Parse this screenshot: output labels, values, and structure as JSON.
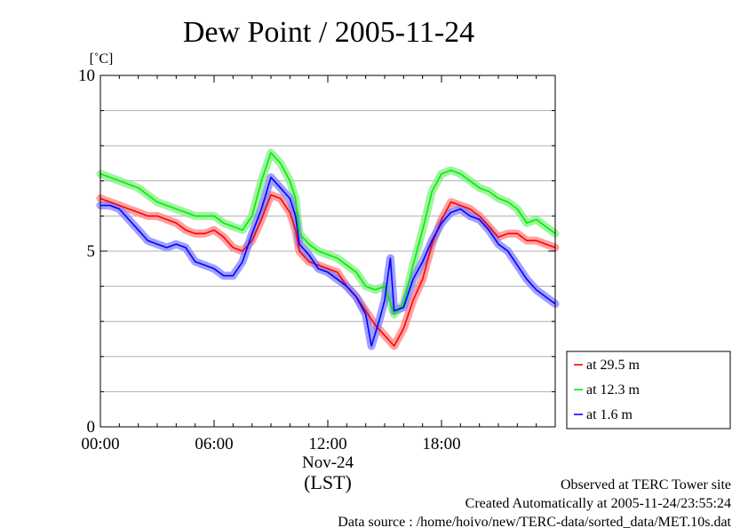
{
  "chart_data": {
    "type": "line",
    "title": "Dew Point / 2005-11-24",
    "ylabel": "[˚C]",
    "ylim": [
      0,
      10
    ],
    "yticks": [
      "0",
      "5",
      "10"
    ],
    "x_range_hours": [
      0,
      24
    ],
    "x_tick_labels": [
      {
        "hour": 0,
        "label": "00:00"
      },
      {
        "hour": 6,
        "label": "06:00"
      },
      {
        "hour": 12,
        "label": "12:00"
      },
      {
        "hour": 18,
        "label": "18:00"
      }
    ],
    "date_label": "Nov-24",
    "x_unit_label": "(LST)",
    "grid": "horizontal, every 1 °C",
    "legend_position": "lower-right outside",
    "series": [
      {
        "name": "at 29.5 m",
        "color": "#ff0000",
        "points": [
          [
            0,
            6.5
          ],
          [
            0.5,
            6.4
          ],
          [
            1,
            6.3
          ],
          [
            1.5,
            6.2
          ],
          [
            2,
            6.1
          ],
          [
            2.5,
            6.0
          ],
          [
            3,
            6.0
          ],
          [
            3.5,
            5.9
          ],
          [
            4,
            5.8
          ],
          [
            4.5,
            5.6
          ],
          [
            5,
            5.5
          ],
          [
            5.5,
            5.5
          ],
          [
            6,
            5.6
          ],
          [
            6.5,
            5.4
          ],
          [
            7,
            5.1
          ],
          [
            7.5,
            5.0
          ],
          [
            8,
            5.3
          ],
          [
            8.5,
            5.9
          ],
          [
            9,
            6.6
          ],
          [
            9.5,
            6.5
          ],
          [
            10,
            6.1
          ],
          [
            10.3,
            5.6
          ],
          [
            10.5,
            5.0
          ],
          [
            11,
            4.7
          ],
          [
            11.5,
            4.6
          ],
          [
            12,
            4.5
          ],
          [
            12.5,
            4.4
          ],
          [
            13,
            4.0
          ],
          [
            13.5,
            3.7
          ],
          [
            14,
            3.3
          ],
          [
            14.5,
            2.9
          ],
          [
            15,
            2.6
          ],
          [
            15.5,
            2.3
          ],
          [
            16,
            2.8
          ],
          [
            16.5,
            3.6
          ],
          [
            17,
            4.2
          ],
          [
            17.5,
            5.2
          ],
          [
            18,
            5.9
          ],
          [
            18.5,
            6.4
          ],
          [
            19,
            6.3
          ],
          [
            19.5,
            6.2
          ],
          [
            20,
            6.0
          ],
          [
            20.5,
            5.7
          ],
          [
            21,
            5.4
          ],
          [
            21.5,
            5.5
          ],
          [
            22,
            5.5
          ],
          [
            22.5,
            5.3
          ],
          [
            23,
            5.3
          ],
          [
            23.5,
            5.2
          ],
          [
            24,
            5.1
          ]
        ]
      },
      {
        "name": "at 12.3 m",
        "color": "#00ee00",
        "points": [
          [
            0,
            7.2
          ],
          [
            0.5,
            7.1
          ],
          [
            1,
            7.0
          ],
          [
            1.5,
            6.9
          ],
          [
            2,
            6.8
          ],
          [
            2.5,
            6.6
          ],
          [
            3,
            6.4
          ],
          [
            3.5,
            6.3
          ],
          [
            4,
            6.2
          ],
          [
            4.5,
            6.1
          ],
          [
            5,
            6.0
          ],
          [
            5.5,
            6.0
          ],
          [
            6,
            6.0
          ],
          [
            6.5,
            5.8
          ],
          [
            7,
            5.7
          ],
          [
            7.5,
            5.6
          ],
          [
            8,
            6.0
          ],
          [
            8.5,
            7.0
          ],
          [
            9,
            7.8
          ],
          [
            9.5,
            7.5
          ],
          [
            10,
            7.0
          ],
          [
            10.3,
            6.5
          ],
          [
            10.5,
            5.5
          ],
          [
            11,
            5.2
          ],
          [
            11.5,
            5.0
          ],
          [
            12,
            4.9
          ],
          [
            12.5,
            4.8
          ],
          [
            13,
            4.6
          ],
          [
            13.5,
            4.4
          ],
          [
            14,
            4.0
          ],
          [
            14.5,
            3.9
          ],
          [
            15,
            4.0
          ],
          [
            15.5,
            3.2
          ],
          [
            16,
            3.5
          ],
          [
            16.5,
            4.6
          ],
          [
            17,
            5.6
          ],
          [
            17.5,
            6.7
          ],
          [
            18,
            7.2
          ],
          [
            18.5,
            7.3
          ],
          [
            19,
            7.2
          ],
          [
            19.5,
            7.0
          ],
          [
            20,
            6.8
          ],
          [
            20.5,
            6.7
          ],
          [
            21,
            6.5
          ],
          [
            21.5,
            6.4
          ],
          [
            22,
            6.2
          ],
          [
            22.5,
            5.8
          ],
          [
            23,
            5.9
          ],
          [
            23.5,
            5.7
          ],
          [
            24,
            5.5
          ]
        ]
      },
      {
        "name": "at 1.6 m",
        "color": "#0000ff",
        "points": [
          [
            0,
            6.3
          ],
          [
            0.5,
            6.3
          ],
          [
            1,
            6.2
          ],
          [
            1.5,
            5.9
          ],
          [
            2,
            5.6
          ],
          [
            2.5,
            5.3
          ],
          [
            3,
            5.2
          ],
          [
            3.5,
            5.1
          ],
          [
            4,
            5.2
          ],
          [
            4.5,
            5.1
          ],
          [
            5,
            4.7
          ],
          [
            5.5,
            4.6
          ],
          [
            6,
            4.5
          ],
          [
            6.5,
            4.3
          ],
          [
            7,
            4.3
          ],
          [
            7.5,
            4.7
          ],
          [
            8,
            5.5
          ],
          [
            8.5,
            6.2
          ],
          [
            9,
            7.1
          ],
          [
            9.5,
            6.8
          ],
          [
            10,
            6.5
          ],
          [
            10.3,
            6.0
          ],
          [
            10.5,
            5.2
          ],
          [
            11,
            4.9
          ],
          [
            11.5,
            4.5
          ],
          [
            12,
            4.4
          ],
          [
            12.5,
            4.2
          ],
          [
            13,
            4.0
          ],
          [
            13.5,
            3.7
          ],
          [
            14,
            3.2
          ],
          [
            14.3,
            2.3
          ],
          [
            14.7,
            3.0
          ],
          [
            15,
            3.6
          ],
          [
            15.3,
            4.8
          ],
          [
            15.5,
            3.3
          ],
          [
            16,
            3.4
          ],
          [
            16.5,
            4.2
          ],
          [
            17,
            4.7
          ],
          [
            17.5,
            5.3
          ],
          [
            18,
            5.8
          ],
          [
            18.5,
            6.1
          ],
          [
            19,
            6.2
          ],
          [
            19.5,
            6.0
          ],
          [
            20,
            5.9
          ],
          [
            20.5,
            5.6
          ],
          [
            21,
            5.2
          ],
          [
            21.5,
            5.0
          ],
          [
            22,
            4.6
          ],
          [
            22.5,
            4.2
          ],
          [
            23,
            3.9
          ],
          [
            23.5,
            3.7
          ],
          [
            24,
            3.5
          ]
        ]
      }
    ]
  },
  "footer": {
    "line1": "Observed at TERC Tower site",
    "line2": "Created Automatically at 2005-11-24/23:55:24",
    "line3": "Data source : /home/hoivo/new/TERC-data/sorted_data/MET.10s.dat"
  },
  "colors": {
    "series_1_band": "#ff8080",
    "series_2_band": "#80f080",
    "series_3_band": "#8080ff",
    "grid": "#b0b0b0"
  }
}
